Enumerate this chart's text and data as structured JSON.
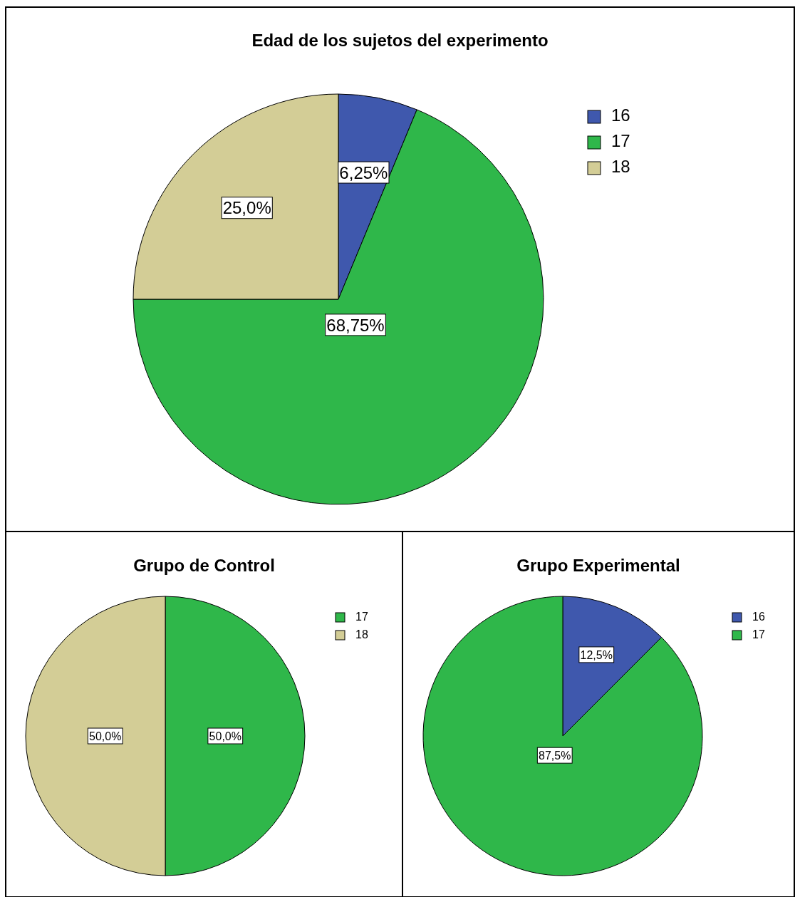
{
  "chart_data": [
    {
      "type": "pie",
      "title": "Edad de los sujetos del experimento",
      "categories": [
        "16",
        "17",
        "18"
      ],
      "values": [
        6.25,
        68.75,
        25.0
      ],
      "value_labels": [
        "6,25%",
        "68,75%",
        "25,0%"
      ],
      "colors": [
        "#3f58ad",
        "#2fb74a",
        "#d3cd96"
      ],
      "legend": "right"
    },
    {
      "type": "pie",
      "title": "Grupo de Control",
      "categories": [
        "17",
        "18"
      ],
      "values": [
        50.0,
        50.0
      ],
      "value_labels": [
        "50,0%",
        "50,0%"
      ],
      "colors": [
        "#2fb74a",
        "#d3cd96"
      ],
      "legend": "right"
    },
    {
      "type": "pie",
      "title": "Grupo Experimental",
      "categories": [
        "16",
        "17"
      ],
      "values": [
        12.5,
        87.5
      ],
      "value_labels": [
        "12,5%",
        "87,5%"
      ],
      "colors": [
        "#3f58ad",
        "#2fb74a"
      ],
      "legend": "right"
    }
  ]
}
